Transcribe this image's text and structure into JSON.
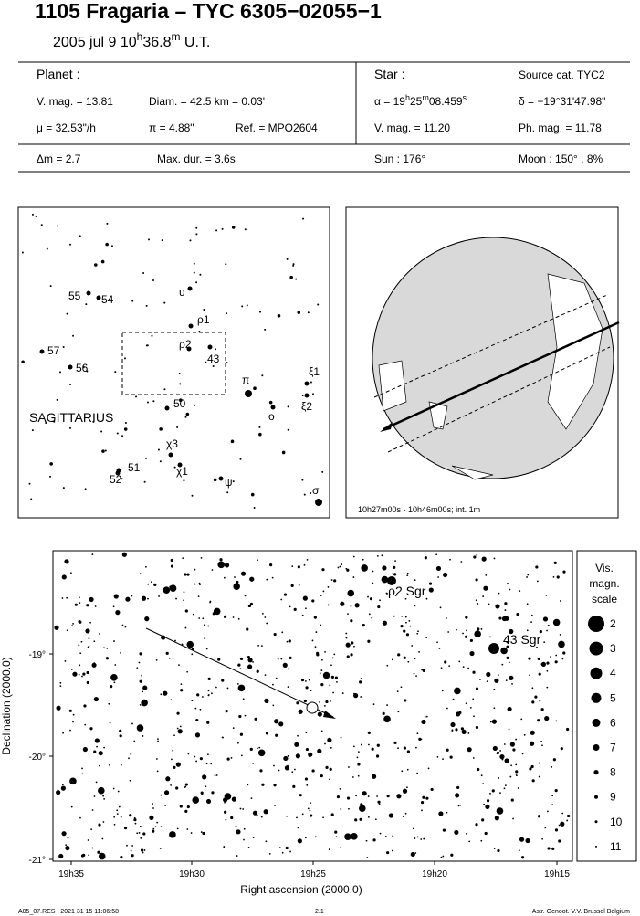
{
  "header": {
    "title": "1105 Fragaria  –  TYC 6305−02055−1",
    "date": [
      "2005 jul  9  10",
      "h",
      "36.8",
      "m",
      " U.T."
    ]
  },
  "info": {
    "planet": "Planet :",
    "vmag": "V. mag. = 13.81",
    "diam": "Diam. = 42.5 km = 0.03'",
    "mu": "μ =  32.53\"/h",
    "pi": "π =  4.88\"",
    "ref": "Ref. = MPO2604",
    "star": "Star :",
    "source": "Source cat.  TYC2",
    "alpha": [
      "α = 19",
      "h",
      "25",
      "m",
      "08.459",
      "s"
    ],
    "delta": "δ = −19°31'47.98\"",
    "svmag": "V. mag. = 11.20",
    "phmag": "Ph. mag. = 11.78",
    "dm": "Δm = 2.7",
    "maxdur": "Max. dur. = 3.6s",
    "sun": "Sun : 176°",
    "moon": "Moon : 150° ,  8%"
  },
  "finder": {
    "labels": [
      "55",
      "54",
      "υ",
      "ρ1",
      "ρ2",
      "43",
      "57",
      "56",
      "π",
      "ξ1",
      "ξ2",
      "ο",
      "50",
      "SAGITTARIUS",
      "χ3",
      "χ1",
      "51",
      "52",
      "ψ",
      "σ"
    ]
  },
  "globe": {
    "caption": "10h27m00s - 10h46m00s; int. 1m"
  },
  "field": {
    "ylabel": "Declination (2000.0)",
    "xlabel": "Right ascension (2000.0)",
    "yticks": [
      "-19°",
      "-20°",
      "-21°"
    ],
    "xticks": [
      "19h35",
      "19h30",
      "19h25",
      "19h20",
      "19h15"
    ],
    "annotations": [
      "ρ2 Sgr",
      "43 Sgr"
    ],
    "legend_title": [
      "Vis.",
      "magn.",
      "scale"
    ],
    "legend": [
      "2",
      "3",
      "4",
      "5",
      "6",
      "7",
      "8",
      "9",
      "10",
      "11"
    ]
  },
  "footer": {
    "left": "A05_07.RES : 2021 31 15 11:06:58",
    "center": "2.1",
    "right": "Astr. Genoot. V.V.  Brussel  Belgium"
  }
}
